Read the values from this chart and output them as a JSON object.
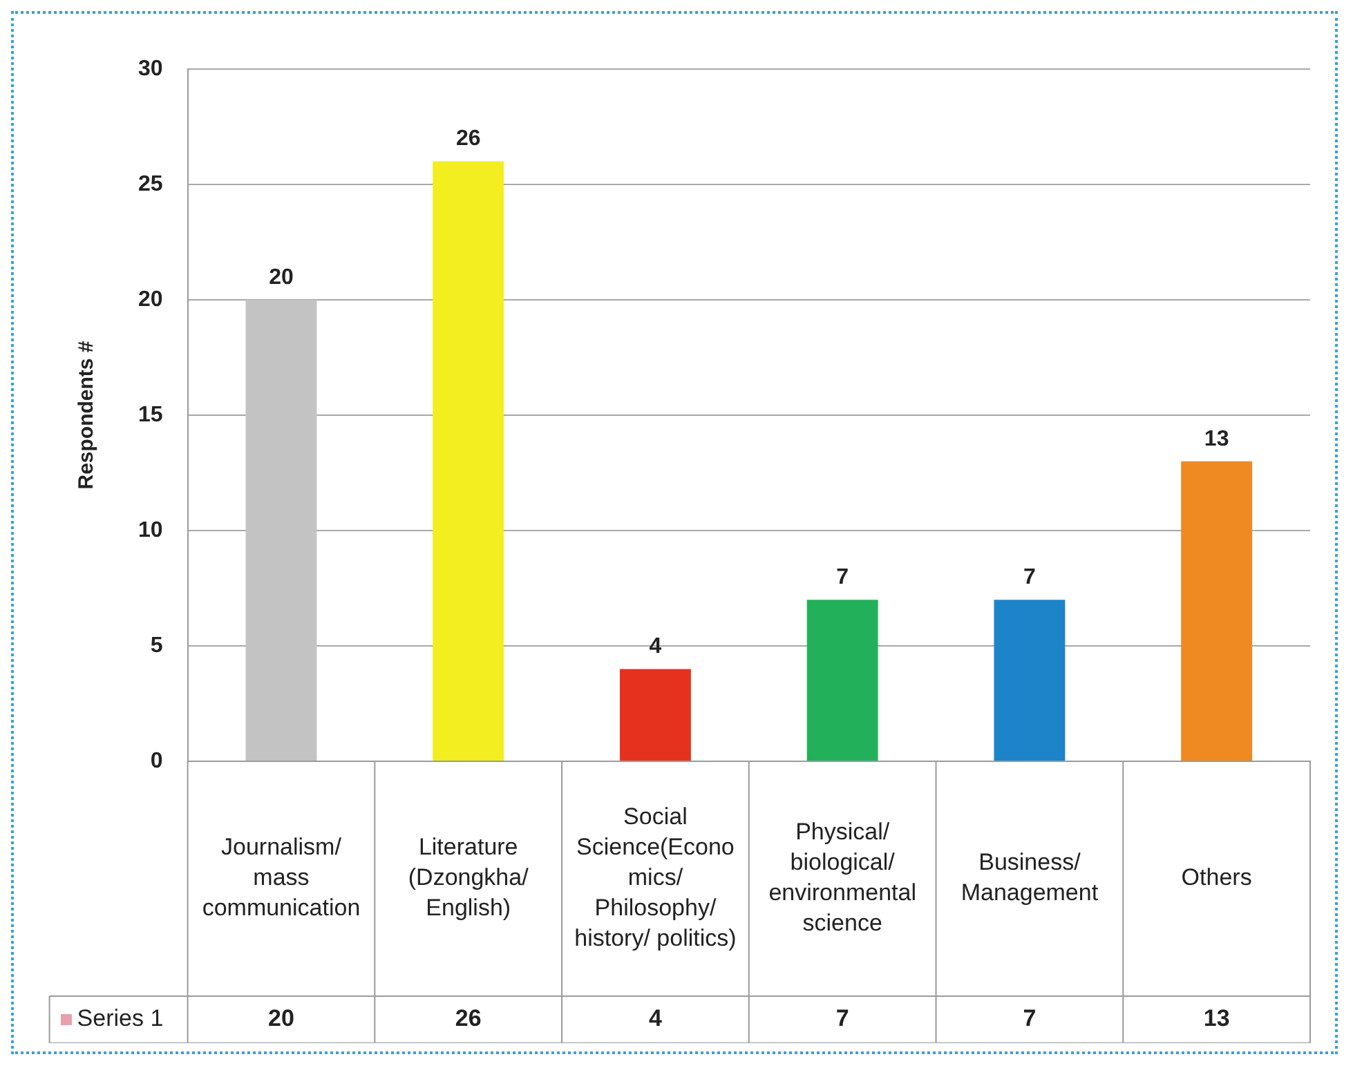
{
  "chart_data": {
    "type": "bar",
    "ylabel": "Respondents #",
    "categories": [
      "Journalism/ mass communication",
      "Literature (Dzongkha/ English)",
      "Social Science(Economics/ Philosophy/ history/ politics)",
      "Physical/ biological/ environmental science",
      "Business/ Management",
      "Others"
    ],
    "series": [
      {
        "name": "Series 1",
        "color": "#e8a0ac",
        "colors": [
          "#c3c3c3",
          "#f2ee1f",
          "#e5321f",
          "#22b15a",
          "#1d84c9",
          "#ef8a23"
        ],
        "values": [
          20,
          26,
          4,
          7,
          7,
          13
        ],
        "value_labels": [
          "20",
          "26",
          "4",
          "7",
          "7",
          "13"
        ]
      }
    ],
    "annotations": [
      "20",
      "26",
      "4",
      "7",
      "7",
      "13"
    ],
    "ylim": [
      0,
      30
    ],
    "yticks": [
      0,
      5,
      10,
      15,
      20,
      25,
      30
    ],
    "grid": "y",
    "legend": "bottom"
  }
}
